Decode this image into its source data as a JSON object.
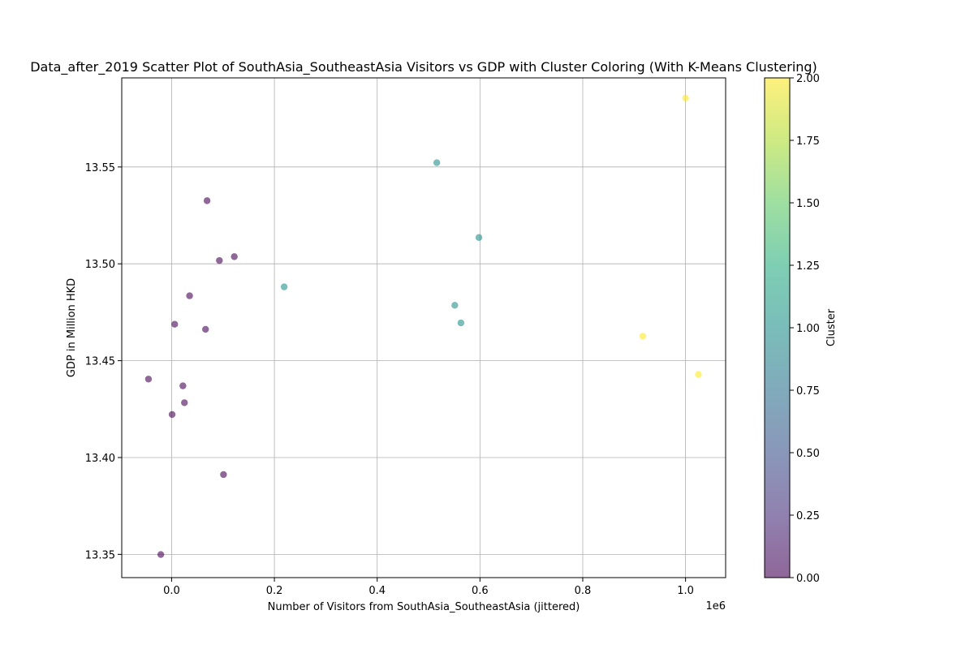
{
  "chart_data": {
    "type": "scatter",
    "title": "Data_after_2019 Scatter Plot of SouthAsia_SoutheastAsia Visitors vs GDP with Cluster Coloring (With K-Means Clustering)",
    "xlabel": "Number of Visitors from SouthAsia_SoutheastAsia (jittered)",
    "ylabel": "GDP in Million HKD",
    "x_offset_label": "1e6",
    "x_multiplier": 1000000,
    "xlim": [
      -0.097,
      1.078
    ],
    "ylim": [
      13.338,
      13.596
    ],
    "x_ticks": [
      0.0,
      0.2,
      0.4,
      0.6,
      0.8,
      1.0
    ],
    "x_tick_labels": [
      "0.0",
      "0.2",
      "0.4",
      "0.6",
      "0.8",
      "1.0"
    ],
    "y_ticks": [
      13.35,
      13.4,
      13.45,
      13.5,
      13.55
    ],
    "y_tick_labels": [
      "13.35",
      "13.40",
      "13.45",
      "13.50",
      "13.55"
    ],
    "grid": true,
    "colorbar": {
      "label": "Cluster",
      "range": [
        0,
        2
      ],
      "ticks": [
        0.0,
        0.25,
        0.5,
        0.75,
        1.0,
        1.25,
        1.5,
        1.75,
        2.0
      ],
      "tick_labels": [
        "0.00",
        "0.25",
        "0.50",
        "0.75",
        "1.00",
        "1.25",
        "1.50",
        "1.75",
        "2.00"
      ],
      "colormap": "viridis"
    },
    "cluster_colors": [
      "#440154",
      "#21918c",
      "#fde725"
    ],
    "point_alpha": 0.6,
    "points": [
      {
        "x": -0.045,
        "y": 13.4405,
        "cluster": 0
      },
      {
        "x": -0.021,
        "y": 13.3499,
        "cluster": 0
      },
      {
        "x": 0.001,
        "y": 13.4222,
        "cluster": 0
      },
      {
        "x": 0.006,
        "y": 13.4688,
        "cluster": 0
      },
      {
        "x": 0.022,
        "y": 13.437,
        "cluster": 0
      },
      {
        "x": 0.025,
        "y": 13.4283,
        "cluster": 0
      },
      {
        "x": 0.035,
        "y": 13.4835,
        "cluster": 0
      },
      {
        "x": 0.066,
        "y": 13.4662,
        "cluster": 0
      },
      {
        "x": 0.069,
        "y": 13.5326,
        "cluster": 0
      },
      {
        "x": 0.093,
        "y": 13.5017,
        "cluster": 0
      },
      {
        "x": 0.101,
        "y": 13.3912,
        "cluster": 0
      },
      {
        "x": 0.122,
        "y": 13.5037,
        "cluster": 0
      },
      {
        "x": 0.219,
        "y": 13.4881,
        "cluster": 1
      },
      {
        "x": 0.516,
        "y": 13.5522,
        "cluster": 1
      },
      {
        "x": 0.551,
        "y": 13.4786,
        "cluster": 1
      },
      {
        "x": 0.563,
        "y": 13.4695,
        "cluster": 1
      },
      {
        "x": 0.598,
        "y": 13.5136,
        "cluster": 1
      },
      {
        "x": 0.917,
        "y": 13.4626,
        "cluster": 2
      },
      {
        "x": 1.0,
        "y": 13.5856,
        "cluster": 2
      },
      {
        "x": 1.025,
        "y": 13.4429,
        "cluster": 2
      }
    ]
  }
}
